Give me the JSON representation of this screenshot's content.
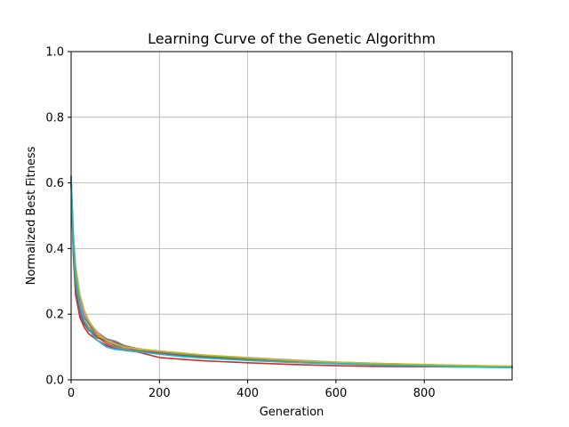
{
  "chart_data": {
    "type": "line",
    "title": "Learning Curve of the Genetic Algorithm",
    "xlabel": "Generation",
    "ylabel": "Normalized Best Fitness",
    "xlim": [
      0,
      999
    ],
    "ylim": [
      0,
      1.0
    ],
    "xticks": [
      0,
      200,
      400,
      600,
      800
    ],
    "xtick_labels": [
      "0",
      "200",
      "400",
      "600",
      "800"
    ],
    "yticks": [
      0,
      0.2,
      0.4,
      0.6,
      0.8,
      1.0
    ],
    "ytick_labels": [
      "0.0",
      "0.2",
      "0.4",
      "0.6",
      "0.8",
      "1.0"
    ],
    "grid": true,
    "legend": "none",
    "x": [
      0,
      5,
      10,
      20,
      30,
      40,
      50,
      60,
      80,
      100,
      120,
      150,
      200,
      250,
      300,
      400,
      500,
      600,
      700,
      800,
      900,
      999
    ],
    "series": [
      {
        "color": "#1f77b4",
        "values": [
          0.62,
          0.42,
          0.31,
          0.23,
          0.19,
          0.17,
          0.155,
          0.14,
          0.12,
          0.105,
          0.098,
          0.09,
          0.082,
          0.076,
          0.072,
          0.063,
          0.057,
          0.052,
          0.048,
          0.045,
          0.042,
          0.04
        ]
      },
      {
        "color": "#ff7f0e",
        "values": [
          0.61,
          0.41,
          0.3,
          0.22,
          0.18,
          0.16,
          0.15,
          0.135,
          0.115,
          0.1,
          0.095,
          0.088,
          0.08,
          0.075,
          0.07,
          0.062,
          0.056,
          0.051,
          0.047,
          0.044,
          0.041,
          0.039
        ]
      },
      {
        "color": "#2ca02c",
        "values": [
          0.6,
          0.43,
          0.33,
          0.25,
          0.21,
          0.18,
          0.16,
          0.145,
          0.125,
          0.108,
          0.1,
          0.092,
          0.085,
          0.078,
          0.073,
          0.064,
          0.058,
          0.053,
          0.049,
          0.046,
          0.043,
          0.041
        ]
      },
      {
        "color": "#d62728",
        "values": [
          0.6,
          0.38,
          0.26,
          0.19,
          0.16,
          0.14,
          0.13,
          0.12,
          0.105,
          0.095,
          0.09,
          0.085,
          0.068,
          0.063,
          0.058,
          0.052,
          0.047,
          0.043,
          0.041,
          0.04,
          0.039,
          0.038
        ]
      },
      {
        "color": "#9467bd",
        "values": [
          0.61,
          0.4,
          0.28,
          0.21,
          0.175,
          0.155,
          0.145,
          0.13,
          0.11,
          0.098,
          0.092,
          0.087,
          0.079,
          0.072,
          0.068,
          0.06,
          0.054,
          0.05,
          0.046,
          0.043,
          0.04,
          0.038
        ]
      },
      {
        "color": "#8c564b",
        "values": [
          0.62,
          0.39,
          0.27,
          0.2,
          0.17,
          0.15,
          0.14,
          0.128,
          0.118,
          0.115,
          0.1,
          0.09,
          0.082,
          0.074,
          0.069,
          0.061,
          0.055,
          0.051,
          0.047,
          0.044,
          0.041,
          0.039
        ]
      },
      {
        "color": "#e377c2",
        "values": [
          0.61,
          0.42,
          0.32,
          0.24,
          0.2,
          0.175,
          0.16,
          0.145,
          0.125,
          0.11,
          0.1,
          0.093,
          0.086,
          0.079,
          0.075,
          0.068,
          0.061,
          0.054,
          0.05,
          0.046,
          0.043,
          0.041
        ]
      },
      {
        "color": "#7f7f7f",
        "values": [
          0.6,
          0.41,
          0.3,
          0.22,
          0.19,
          0.17,
          0.15,
          0.14,
          0.125,
          0.118,
          0.105,
          0.095,
          0.087,
          0.08,
          0.075,
          0.066,
          0.058,
          0.052,
          0.048,
          0.045,
          0.042,
          0.04
        ]
      },
      {
        "color": "#bcbd22",
        "values": [
          0.61,
          0.45,
          0.35,
          0.26,
          0.21,
          0.18,
          0.16,
          0.14,
          0.12,
          0.108,
          0.1,
          0.094,
          0.088,
          0.082,
          0.076,
          0.067,
          0.059,
          0.054,
          0.05,
          0.047,
          0.044,
          0.042
        ]
      },
      {
        "color": "#17becf",
        "values": [
          0.62,
          0.44,
          0.32,
          0.23,
          0.18,
          0.155,
          0.135,
          0.12,
          0.1,
          0.093,
          0.09,
          0.086,
          0.078,
          0.071,
          0.066,
          0.059,
          0.053,
          0.049,
          0.045,
          0.042,
          0.039,
          0.037
        ]
      }
    ]
  }
}
